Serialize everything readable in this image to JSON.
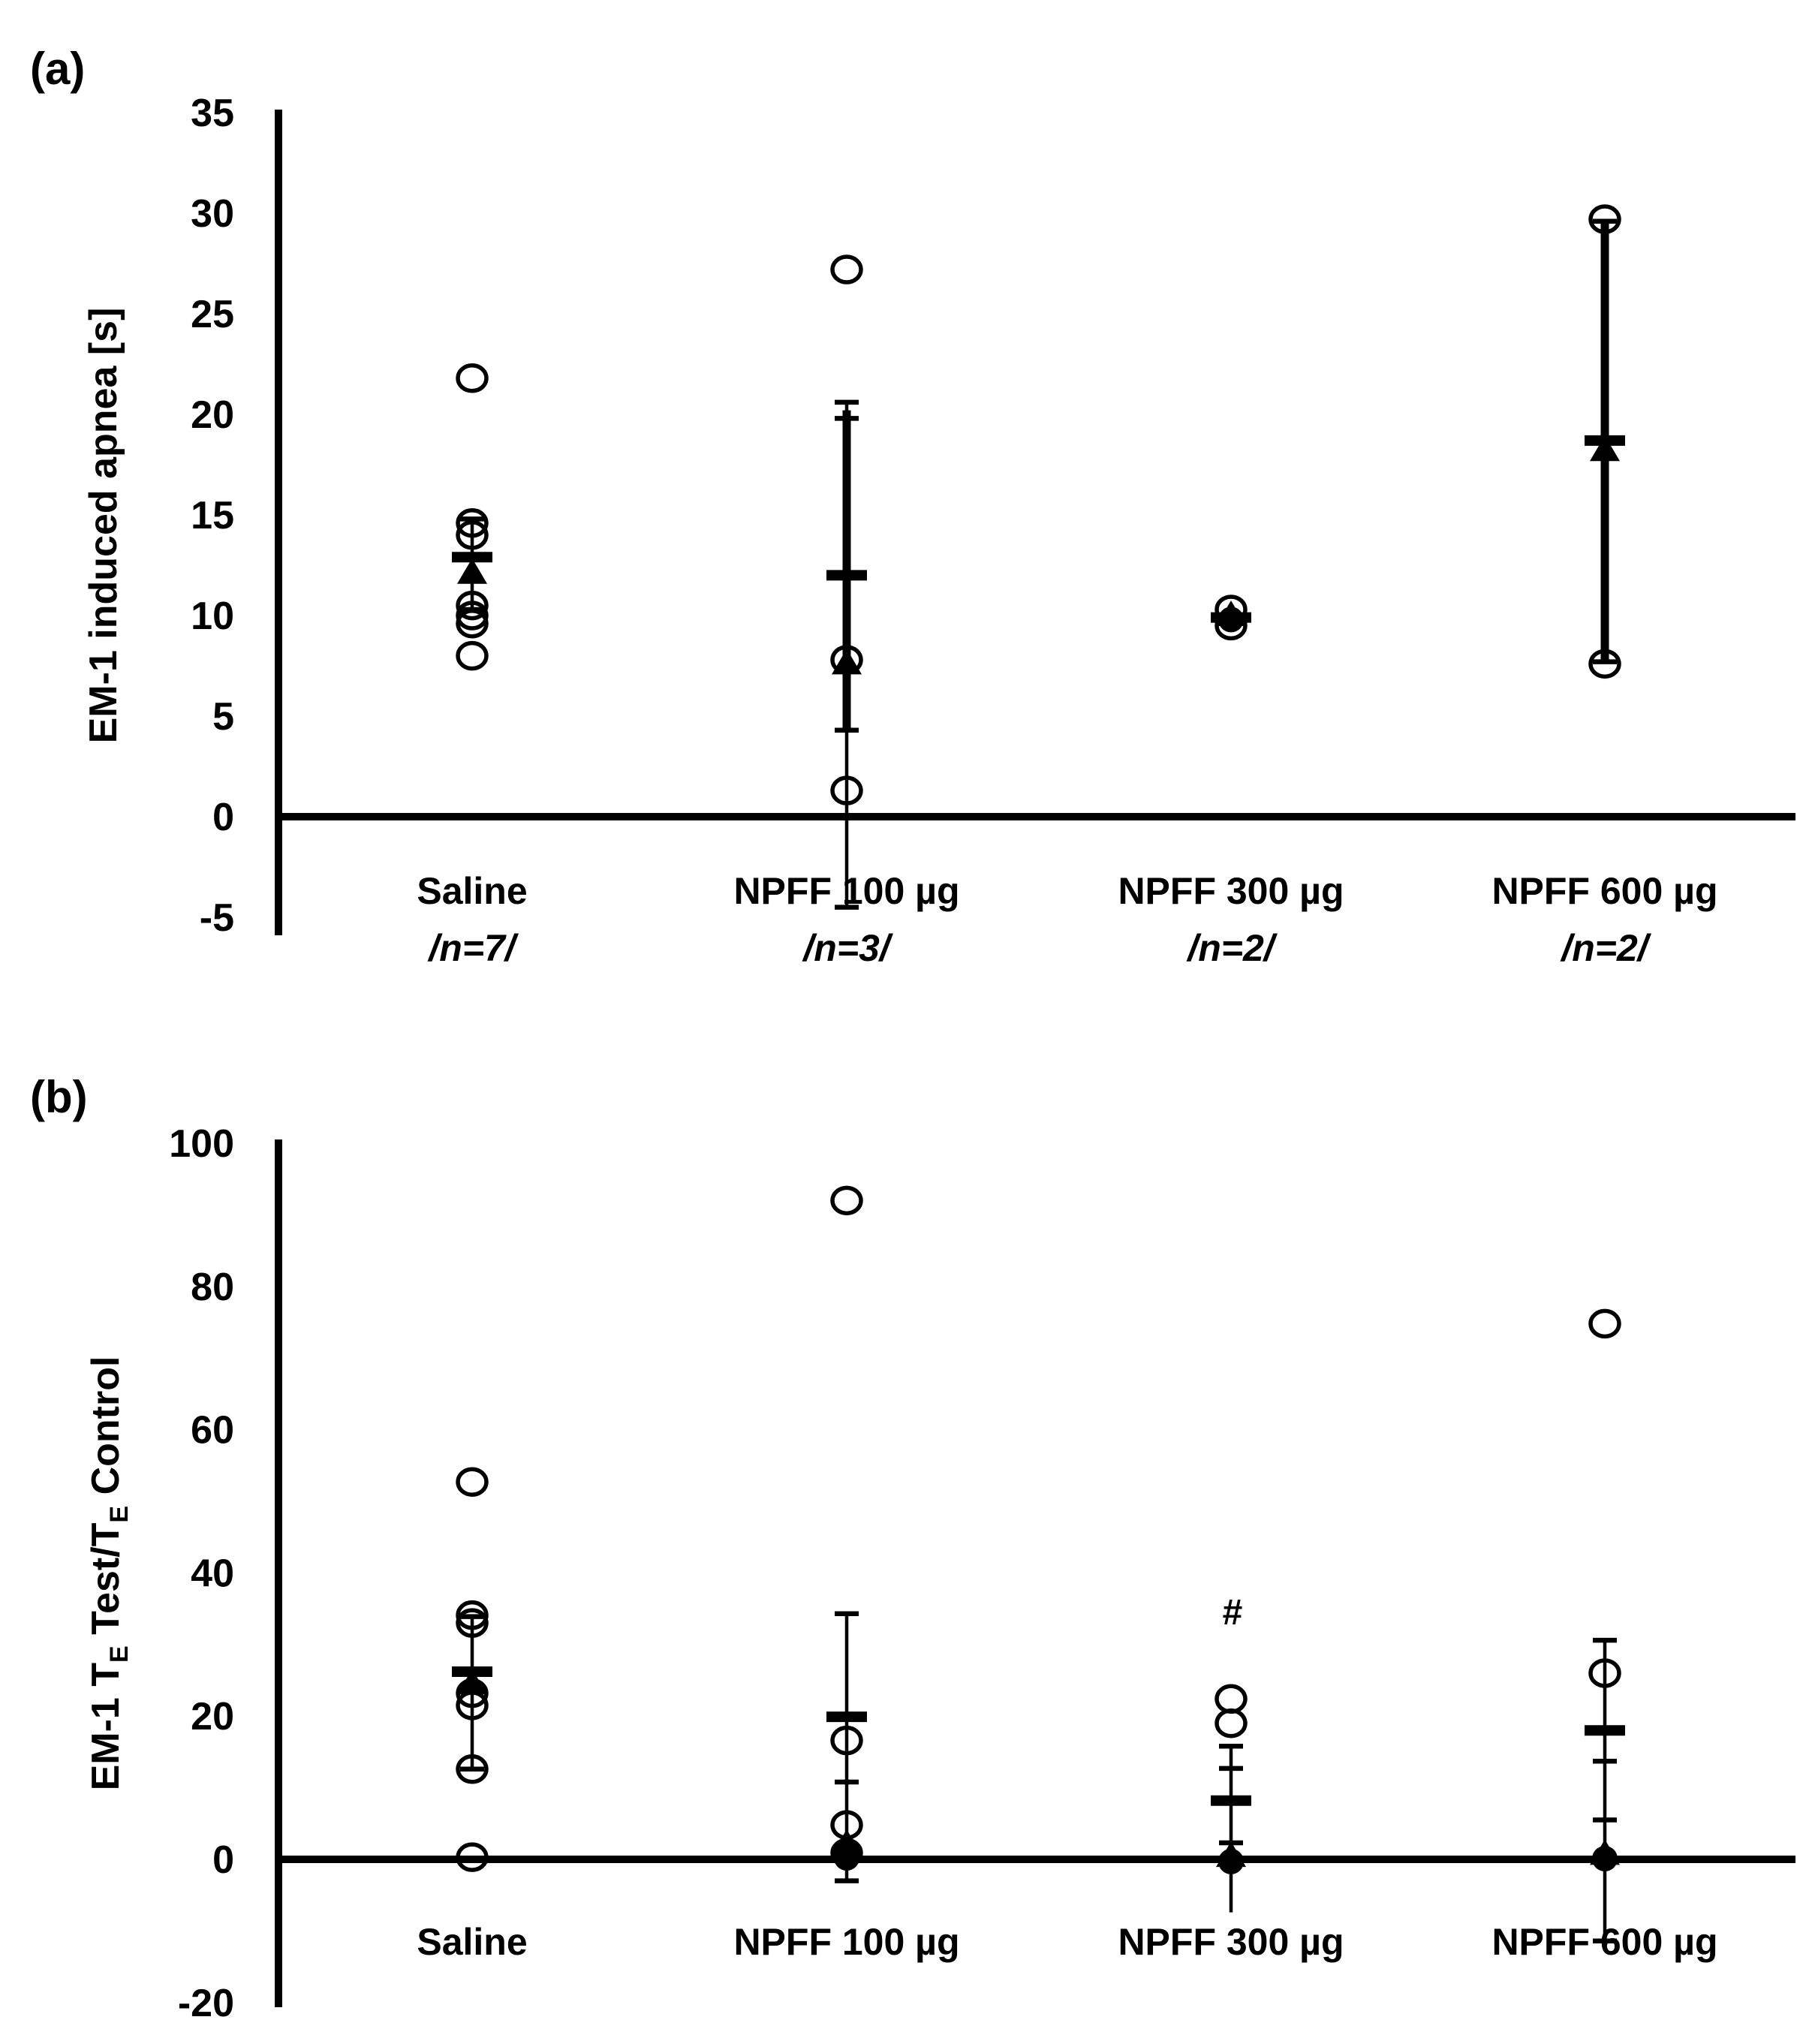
{
  "figure": {
    "background_color": "#ffffff",
    "ink_color": "#000000",
    "marker_legend": {
      "open_circle": "individual value",
      "filled_triangle": "median",
      "thick_dash": "mean",
      "vertical_line_caps": "error bar"
    }
  },
  "chart_data": [
    {
      "type": "scatter",
      "panel_label": "(a)",
      "ylabel_parts": [
        {
          "t": "EM-1 induced apnea [s]"
        }
      ],
      "ylim": [
        -5,
        35
      ],
      "yticks": [
        35,
        30,
        25,
        20,
        15,
        10,
        5,
        0,
        -5
      ],
      "grid": false,
      "categories": [
        "Saline",
        "NPFF 100 µg",
        "NPFF 300 µg",
        "NPFF 600 µg"
      ],
      "groups": [
        {
          "label_lines": [
            "Saline",
            "/n=7/"
          ],
          "circles": [
            21.8,
            14.6,
            14.0,
            10.5,
            10.0,
            9.6,
            8.0
          ],
          "filled_circle": null,
          "triangle": 12.1,
          "mean": 12.9,
          "thick_bar": null,
          "thin_line": [
            10.3,
            14.8
          ],
          "caps": [
            14.8,
            10.3
          ],
          "annotation": null,
          "annotation_y": null
        },
        {
          "label_lines": [
            "NPFF 100 µg",
            "/n=3/"
          ],
          "circles": [
            27.2,
            7.8,
            1.3
          ],
          "filled_circle": null,
          "triangle": 7.6,
          "mean": 12.0,
          "thick_bar": [
            4.3,
            20.2
          ],
          "thin_line": [
            -4.5,
            20.6
          ],
          "caps": [
            20.6,
            19.8,
            4.3,
            -4.5
          ],
          "annotation": null,
          "annotation_y": null
        },
        {
          "label_lines": [
            "NPFF 300 µg",
            "/n=2/"
          ],
          "circles": [
            10.3,
            9.5
          ],
          "filled_circle": 9.8,
          "triangle": 10.0,
          "mean": 9.9,
          "thick_bar": [
            9.4,
            10.3
          ],
          "thin_line": null,
          "caps": [],
          "annotation": null,
          "annotation_y": null
        },
        {
          "label_lines": [
            "NPFF 600 µg",
            "/n=2/"
          ],
          "circles": [
            29.7,
            7.6
          ],
          "filled_circle": null,
          "triangle": 18.2,
          "mean": 18.7,
          "thick_bar": [
            7.7,
            29.6
          ],
          "thin_line": null,
          "caps": [
            29.6,
            7.7
          ],
          "annotation": null,
          "annotation_y": null
        }
      ]
    },
    {
      "type": "scatter",
      "panel_label": "(b)",
      "ylabel_parts": [
        {
          "t": "EM-1 T"
        },
        {
          "t": "E",
          "sub": true
        },
        {
          "t": " Test/T"
        },
        {
          "t": "E",
          "sub": true
        },
        {
          "t": " Control"
        }
      ],
      "ylim": [
        -20,
        100
      ],
      "yticks": [
        100,
        80,
        60,
        40,
        20,
        0,
        -20
      ],
      "grid": false,
      "categories": [
        "Saline",
        "NPFF 100 µg",
        "NPFF 300 µg",
        "NPFF 600 µg"
      ],
      "groups": [
        {
          "label_lines": [
            "Saline"
          ],
          "circles": [
            52.7,
            34.1,
            33.0,
            23.2,
            21.5,
            12.6,
            0.3
          ],
          "filled_circle": null,
          "triangle": 24.5,
          "mean": 26.2,
          "thick_bar": null,
          "thin_line": [
            12.6,
            33.9
          ],
          "caps": [
            33.9,
            12.6
          ],
          "annotation": null,
          "annotation_y": null
        },
        {
          "label_lines": [
            "NPFF 100 µg"
          ],
          "circles": [
            92.0,
            16.6,
            4.8,
            0.9
          ],
          "filled_circle": 0.2,
          "triangle": 2.1,
          "mean": 19.9,
          "thick_bar": null,
          "thin_line": [
            -3.0,
            34.3
          ],
          "caps": [
            34.3,
            10.8,
            -3.0
          ],
          "annotation": null,
          "annotation_y": null
        },
        {
          "label_lines": [
            "NPFF 300 µg"
          ],
          "circles": [
            22.4,
            19.0
          ],
          "filled_circle": -0.3,
          "triangle": 0.4,
          "mean": 8.2,
          "thick_bar": null,
          "thin_line": [
            -7.4,
            15.8
          ],
          "caps": [
            15.8,
            12.7,
            2.3
          ],
          "annotation": "#",
          "annotation_y": 34.5
        },
        {
          "label_lines": [
            "NPFF 600 µg"
          ],
          "circles": [
            74.8,
            26.0
          ],
          "filled_circle": 0.1,
          "triangle": 0.7,
          "mean": 18.0,
          "thick_bar": null,
          "thin_line": [
            -11.4,
            30.6
          ],
          "caps": [
            30.6,
            13.7,
            5.5,
            -11.4
          ],
          "annotation": null,
          "annotation_y": null
        }
      ]
    }
  ]
}
